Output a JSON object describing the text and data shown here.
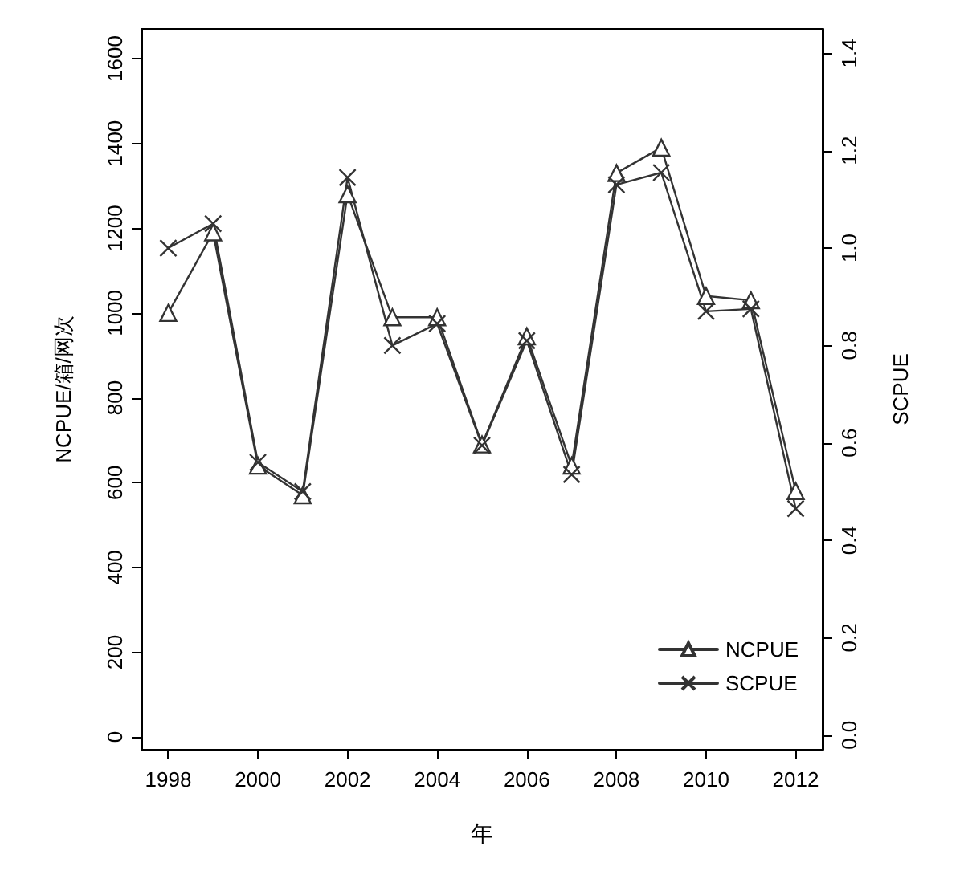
{
  "chart_data": {
    "type": "line",
    "xlabel": "年",
    "ylabel": "NCPUE/箱/网次",
    "y2label": "SCPUE",
    "x": [
      1998,
      1999,
      2000,
      2001,
      2002,
      2003,
      2004,
      2005,
      2006,
      2007,
      2008,
      2009,
      2010,
      2011,
      2012
    ],
    "series": [
      {
        "name": "NCPUE",
        "color": "#333333",
        "marker": "triangle",
        "values": [
          1000,
          1190,
          640,
          570,
          1280,
          990,
          990,
          690,
          945,
          640,
          1330,
          1390,
          1040,
          1030,
          580
        ]
      },
      {
        "name": "SCPUE",
        "color": "#333333",
        "marker": "cross",
        "axis": "y2",
        "values": [
          1.0,
          1.05,
          0.56,
          0.5,
          1.145,
          0.8,
          0.845,
          0.595,
          0.81,
          0.535,
          1.13,
          1.155,
          0.87,
          0.875,
          0.465
        ]
      }
    ],
    "xlim": [
      1997.4,
      2012.6
    ],
    "xticks": [
      1998,
      2000,
      2002,
      2004,
      2006,
      2008,
      2010,
      2012
    ],
    "ylim": [
      -30,
      1670
    ],
    "yticks": [
      0,
      200,
      400,
      600,
      800,
      1000,
      1200,
      1400,
      1600
    ],
    "y2lim": [
      -0.03,
      1.45
    ],
    "y2ticks": [
      {
        "value": 0,
        "label": "0.0"
      },
      0.2,
      0.4,
      0.6,
      0.8,
      {
        "value": 1,
        "label": "1.0"
      },
      1.2,
      1.4
    ],
    "grid": false,
    "legend": "bottom right",
    "line_style": "solid"
  }
}
